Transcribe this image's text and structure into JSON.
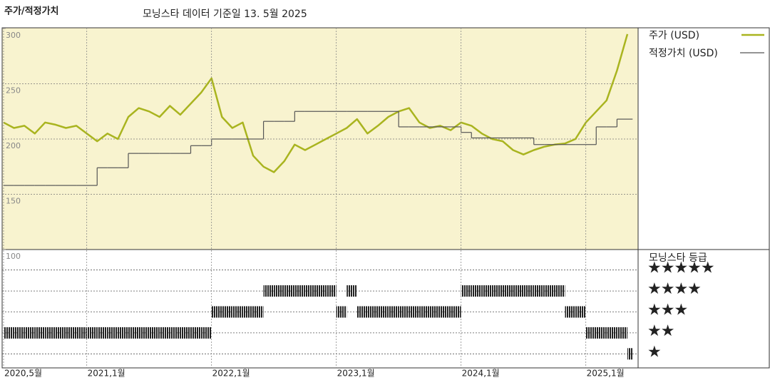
{
  "chart_data": [
    {
      "type": "line",
      "title": "주가/적정가치",
      "subtitle": "모닝스타 데이터 기준일 13. 5월 2025",
      "x": [
        "2020-05",
        "2020-06",
        "2020-07",
        "2020-08",
        "2020-09",
        "2020-10",
        "2020-11",
        "2020-12",
        "2021-01",
        "2021-02",
        "2021-03",
        "2021-04",
        "2021-05",
        "2021-06",
        "2021-07",
        "2021-08",
        "2021-09",
        "2021-10",
        "2021-11",
        "2021-12",
        "2022-01",
        "2022-02",
        "2022-03",
        "2022-04",
        "2022-05",
        "2022-06",
        "2022-07",
        "2022-08",
        "2022-09",
        "2022-10",
        "2022-11",
        "2022-12",
        "2023-01",
        "2023-02",
        "2023-03",
        "2023-04",
        "2023-05",
        "2023-06",
        "2023-07",
        "2023-08",
        "2023-09",
        "2023-10",
        "2023-11",
        "2023-12",
        "2024-01",
        "2024-02",
        "2024-03",
        "2024-04",
        "2024-05",
        "2024-06",
        "2024-07",
        "2024-08",
        "2024-09",
        "2024-10",
        "2024-11",
        "2024-12",
        "2025-01",
        "2025-02",
        "2025-03",
        "2025-04",
        "2025-05"
      ],
      "series": [
        {
          "name": "주가 (USD)",
          "color": "#a9b41f",
          "values": [
            215,
            210,
            212,
            205,
            215,
            213,
            210,
            212,
            205,
            198,
            205,
            200,
            220,
            228,
            225,
            220,
            230,
            222,
            232,
            242,
            255,
            220,
            210,
            215,
            185,
            175,
            170,
            180,
            195,
            190,
            195,
            200,
            205,
            210,
            218,
            205,
            212,
            220,
            225,
            228,
            215,
            210,
            212,
            208,
            215,
            212,
            205,
            200,
            198,
            190,
            186,
            190,
            193,
            195,
            196,
            200,
            215,
            225,
            235,
            262,
            295
          ]
        },
        {
          "name": "적정가치 (USD)",
          "color": "#555555",
          "values": [
            158,
            158,
            158,
            158,
            158,
            158,
            158,
            158,
            158,
            174,
            174,
            174,
            187,
            187,
            187,
            187,
            187,
            187,
            194,
            194,
            200,
            200,
            200,
            200,
            200,
            216,
            216,
            216,
            225,
            225,
            225,
            225,
            225,
            225,
            225,
            225,
            225,
            225,
            211,
            211,
            211,
            211,
            211,
            211,
            206,
            201,
            201,
            201,
            201,
            201,
            201,
            195,
            195,
            195,
            195,
            195,
            195,
            211,
            211,
            218,
            218
          ]
        }
      ],
      "ylim": [
        100,
        300
      ],
      "yticks": [
        100,
        150,
        200,
        250,
        300
      ],
      "grid": true
    },
    {
      "type": "rating",
      "title": "모닝스타 등급",
      "x": [
        "2020-05",
        "2020-06",
        "2020-07",
        "2020-08",
        "2020-09",
        "2020-10",
        "2020-11",
        "2020-12",
        "2021-01",
        "2021-02",
        "2021-03",
        "2021-04",
        "2021-05",
        "2021-06",
        "2021-07",
        "2021-08",
        "2021-09",
        "2021-10",
        "2021-11",
        "2021-12",
        "2022-01",
        "2022-02",
        "2022-03",
        "2022-04",
        "2022-05",
        "2022-06",
        "2022-07",
        "2022-08",
        "2022-09",
        "2022-10",
        "2022-11",
        "2022-12",
        "2023-01",
        "2023-02",
        "2023-03",
        "2023-04",
        "2023-05",
        "2023-06",
        "2023-07",
        "2023-08",
        "2023-09",
        "2023-10",
        "2023-11",
        "2023-12",
        "2024-01",
        "2024-02",
        "2024-03",
        "2024-04",
        "2024-05",
        "2024-06",
        "2024-07",
        "2024-08",
        "2024-09",
        "2024-10",
        "2024-11",
        "2024-12",
        "2025-01",
        "2025-02",
        "2025-03",
        "2025-04",
        "2025-05"
      ],
      "values": [
        2,
        2,
        2,
        2,
        2,
        2,
        2,
        2,
        2,
        2,
        2,
        2,
        2,
        2,
        2,
        2,
        2,
        2,
        2,
        2,
        3,
        3,
        3,
        3,
        3,
        4,
        4,
        4,
        4,
        4,
        4,
        4,
        3,
        4,
        3,
        3,
        3,
        3,
        3,
        3,
        3,
        3,
        3,
        3,
        4,
        4,
        4,
        4,
        4,
        4,
        4,
        4,
        4,
        4,
        3,
        3,
        2,
        2,
        2,
        2,
        1
      ],
      "color": "#222222",
      "ylim": [
        0.5,
        5.5
      ],
      "yticks": [
        {
          "value": 5,
          "label": "★★★★★"
        },
        {
          "value": 4,
          "label": "★★★★"
        },
        {
          "value": 3,
          "label": "★★★"
        },
        {
          "value": 2,
          "label": "★★"
        },
        {
          "value": 1,
          "label": "★"
        }
      ],
      "xticks": [
        {
          "value": "2020-05",
          "label": "2020,5월"
        },
        {
          "value": "2021-01",
          "label": "2021,1월"
        },
        {
          "value": "2022-01",
          "label": "2022,1월"
        },
        {
          "value": "2023-01",
          "label": "2023,1월"
        },
        {
          "value": "2024-01",
          "label": "2024,1월"
        },
        {
          "value": "2025-01",
          "label": "2025,1월"
        }
      ]
    }
  ]
}
